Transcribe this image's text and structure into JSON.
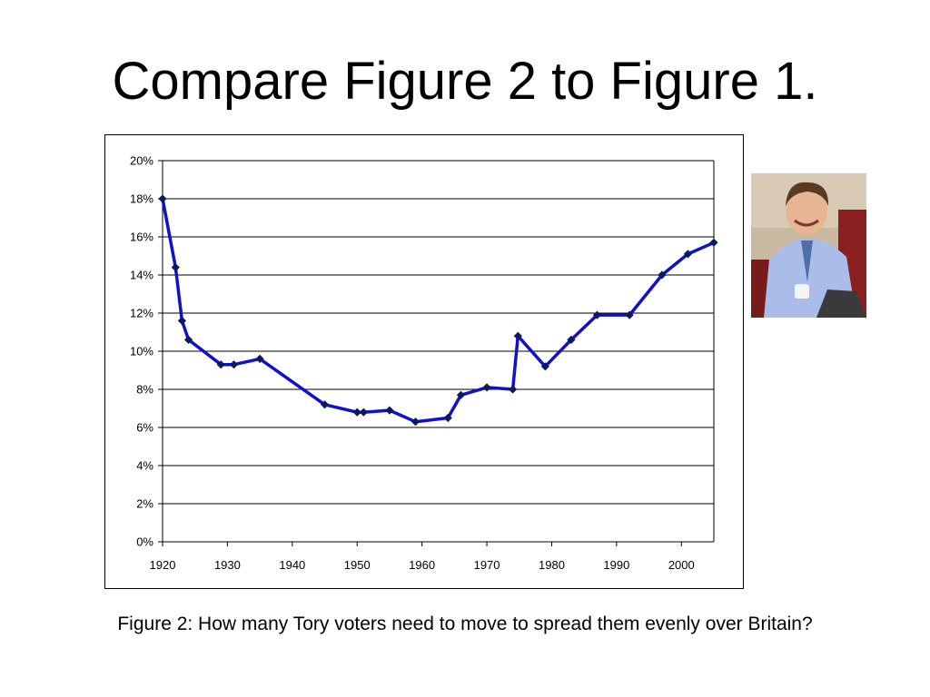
{
  "slide": {
    "title": "Compare Figure 2 to Figure 1.",
    "caption": "Figure 2: How many Tory voters need to move to spread them evenly over Britain?"
  },
  "photo": {
    "icon": "portrait-photo"
  },
  "colors": {
    "line": "#1010d0",
    "marker": "#0a1a5a"
  },
  "chart_data": {
    "type": "line",
    "title": "",
    "xlabel": "",
    "ylabel": "",
    "xlim": [
      1920,
      2005
    ],
    "ylim": [
      0,
      20
    ],
    "x_ticks": [
      1920,
      1930,
      1940,
      1950,
      1960,
      1970,
      1980,
      1990,
      2000
    ],
    "y_ticks": [
      0,
      2,
      4,
      6,
      8,
      10,
      12,
      14,
      16,
      18,
      20
    ],
    "y_tick_suffix": "%",
    "grid": "horizontal",
    "legend": "none",
    "series": [
      {
        "x": [
          1920,
          1922,
          1923,
          1924,
          1929,
          1931,
          1935,
          1945,
          1950,
          1951,
          1955,
          1959,
          1964,
          1966,
          1970,
          1974,
          1974.8,
          1979,
          1983,
          1987,
          1992,
          1997,
          2001,
          2005
        ],
        "values": [
          18.0,
          14.4,
          11.6,
          10.6,
          9.3,
          9.3,
          9.6,
          7.2,
          6.8,
          6.8,
          6.9,
          6.3,
          6.5,
          7.7,
          8.1,
          8.0,
          10.8,
          9.2,
          10.6,
          11.9,
          11.9,
          14.0,
          15.1,
          15.7
        ]
      }
    ]
  }
}
